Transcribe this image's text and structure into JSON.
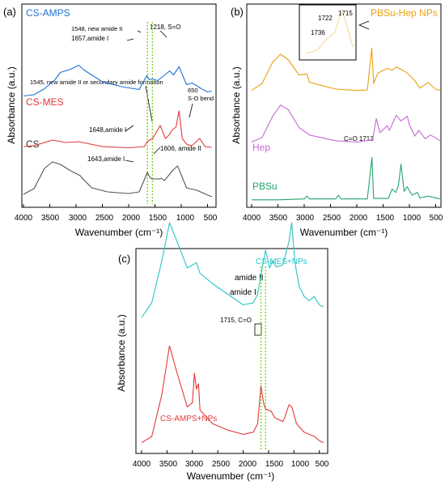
{
  "figure": {
    "panels": [
      {
        "panel_label": "(a)",
        "xlabel": "Wavenumber (cm⁻¹)",
        "ylabel": "Absorbance (a.u.)",
        "xticks": [
          "4000",
          "3500",
          "3000",
          "2500",
          "2000",
          "1500",
          "1000",
          "500"
        ],
        "series_labels": [
          "CS-AMPS",
          "CS-MES",
          "CS"
        ],
        "annotations": [
          "1548, new amide II",
          "1657,amide I",
          "1218, S=O",
          "1545, new amide II or secondary amide formation",
          "650",
          "S-O bend",
          "1648,amide I",
          "1643,amide I",
          "1606, amide II"
        ]
      },
      {
        "panel_label": "(b)",
        "xlabel": "Wavenumber (cm⁻¹)",
        "ylabel": "Absorbance (a.u.)",
        "xticks": [
          "4000",
          "3500",
          "3000",
          "2500",
          "2000",
          "1500",
          "1000",
          "500"
        ],
        "series_labels": [
          "PBSu-Hep NPs",
          "Hep",
          "PBSu"
        ],
        "annotations": [
          "C=O 1713"
        ],
        "inset_labels": [
          "1715",
          "1722",
          "1736"
        ]
      },
      {
        "panel_label": "(c)",
        "xlabel": "Wavenumber (cm⁻¹)",
        "ylabel": "Absorbance (a.u.)",
        "xticks": [
          "4000",
          "3500",
          "3000",
          "2500",
          "2000",
          "1500",
          "1000",
          "500"
        ],
        "series_labels": [
          "CS-MES+NPs",
          "CS-AMPS+NPs"
        ],
        "annotations": [
          "amide II",
          "amide I",
          "1715, C=O"
        ]
      }
    ]
  },
  "chart_data": [
    {
      "type": "line",
      "panel": "(a)",
      "xlabel": "Wavenumber (cm⁻¹)",
      "ylabel": "Absorbance (a.u.)",
      "xlim": [
        4000,
        400
      ],
      "reference_lines_x": [
        1643,
        1548
      ],
      "series": [
        {
          "name": "CS-AMPS",
          "color": "#2171d4",
          "offset": 2.35,
          "points": [
            [
              4000,
              0.2
            ],
            [
              3800,
              0.23
            ],
            [
              3600,
              0.38
            ],
            [
              3400,
              0.6
            ],
            [
              3300,
              0.78
            ],
            [
              3100,
              0.86
            ],
            [
              2950,
              0.96
            ],
            [
              2850,
              0.84
            ],
            [
              2500,
              0.55
            ],
            [
              2100,
              0.42
            ],
            [
              1800,
              0.36
            ],
            [
              1657,
              0.7
            ],
            [
              1600,
              0.6
            ],
            [
              1548,
              0.62
            ],
            [
              1450,
              0.58
            ],
            [
              1350,
              0.68
            ],
            [
              1218,
              0.82
            ],
            [
              1150,
              0.72
            ],
            [
              1040,
              0.92
            ],
            [
              900,
              0.48
            ],
            [
              800,
              0.52
            ],
            [
              700,
              0.45
            ],
            [
              620,
              0.38
            ],
            [
              500,
              0.3
            ],
            [
              420,
              0.32
            ]
          ]
        },
        {
          "name": "CS-MES",
          "color": "#e2393a",
          "offset": 1.2,
          "points": [
            [
              4000,
              0.1
            ],
            [
              3800,
              0.12
            ],
            [
              3450,
              0.26
            ],
            [
              3200,
              0.2
            ],
            [
              2950,
              0.22
            ],
            [
              2500,
              0.1
            ],
            [
              2000,
              0.07
            ],
            [
              1700,
              0.1
            ],
            [
              1648,
              0.22
            ],
            [
              1545,
              0.3
            ],
            [
              1480,
              0.44
            ],
            [
              1400,
              0.62
            ],
            [
              1300,
              0.3
            ],
            [
              1220,
              0.4
            ],
            [
              1180,
              0.5
            ],
            [
              1100,
              0.58
            ],
            [
              1042,
              0.98
            ],
            [
              980,
              0.3
            ],
            [
              900,
              0.16
            ],
            [
              800,
              0.12
            ],
            [
              650,
              0.3
            ],
            [
              550,
              0.1
            ],
            [
              420,
              0.08
            ]
          ]
        },
        {
          "name": "CS",
          "color": "#555555",
          "offset": 0.0,
          "points": [
            [
              4000,
              0.12
            ],
            [
              3800,
              0.26
            ],
            [
              3600,
              0.76
            ],
            [
              3450,
              0.92
            ],
            [
              3300,
              0.86
            ],
            [
              3100,
              0.7
            ],
            [
              2920,
              0.58
            ],
            [
              2870,
              0.5
            ],
            [
              2700,
              0.28
            ],
            [
              2400,
              0.18
            ],
            [
              2000,
              0.14
            ],
            [
              1800,
              0.18
            ],
            [
              1643,
              0.66
            ],
            [
              1600,
              0.55
            ],
            [
              1560,
              0.5
            ],
            [
              1420,
              0.5
            ],
            [
              1380,
              0.52
            ],
            [
              1320,
              0.46
            ],
            [
              1155,
              0.72
            ],
            [
              1070,
              0.82
            ],
            [
              1030,
              0.7
            ],
            [
              900,
              0.28
            ],
            [
              700,
              0.22
            ],
            [
              600,
              0.16
            ],
            [
              420,
              0.06
            ]
          ]
        }
      ]
    },
    {
      "type": "line",
      "panel": "(b)",
      "xlabel": "Wavenumber (cm⁻¹)",
      "ylabel": "Absorbance (a.u.)",
      "xlim": [
        4000,
        400
      ],
      "series": [
        {
          "name": "PBSu-Hep NPs",
          "color": "#e8a010",
          "offset": 2.3,
          "points": [
            [
              4000,
              0.05
            ],
            [
              3800,
              0.2
            ],
            [
              3600,
              0.65
            ],
            [
              3450,
              0.82
            ],
            [
              3300,
              0.7
            ],
            [
              3100,
              0.38
            ],
            [
              2950,
              0.4
            ],
            [
              2900,
              0.22
            ],
            [
              2400,
              0.08
            ],
            [
              2000,
              0.05
            ],
            [
              1800,
              0.06
            ],
            [
              1715,
              0.95
            ],
            [
              1680,
              0.2
            ],
            [
              1600,
              0.42
            ],
            [
              1420,
              0.52
            ],
            [
              1330,
              0.48
            ],
            [
              1250,
              0.55
            ],
            [
              1160,
              0.5
            ],
            [
              1040,
              0.42
            ],
            [
              900,
              0.26
            ],
            [
              800,
              0.1
            ],
            [
              650,
              0.22
            ],
            [
              500,
              0.08
            ],
            [
              420,
              0.05
            ]
          ]
        },
        {
          "name": "Hep",
          "color": "#c768d6",
          "offset": 1.2,
          "points": [
            [
              4000,
              0.05
            ],
            [
              3800,
              0.15
            ],
            [
              3600,
              0.6
            ],
            [
              3450,
              0.84
            ],
            [
              3300,
              0.74
            ],
            [
              3100,
              0.36
            ],
            [
              2900,
              0.2
            ],
            [
              2400,
              0.08
            ],
            [
              2000,
              0.05
            ],
            [
              1700,
              0.1
            ],
            [
              1630,
              0.55
            ],
            [
              1560,
              0.25
            ],
            [
              1420,
              0.4
            ],
            [
              1380,
              0.3
            ],
            [
              1250,
              0.62
            ],
            [
              1160,
              0.5
            ],
            [
              1040,
              0.6
            ],
            [
              1000,
              0.42
            ],
            [
              900,
              0.18
            ],
            [
              820,
              0.3
            ],
            [
              700,
              0.12
            ],
            [
              600,
              0.2
            ],
            [
              500,
              0.14
            ],
            [
              420,
              0.08
            ]
          ]
        },
        {
          "name": "PBSu",
          "color": "#22a56a",
          "offset": 0.0,
          "points": [
            [
              4000,
              0.02
            ],
            [
              3500,
              0.02
            ],
            [
              3000,
              0.04
            ],
            [
              2950,
              0.1
            ],
            [
              2900,
              0.04
            ],
            [
              2400,
              0.04
            ],
            [
              2350,
              0.12
            ],
            [
              2300,
              0.04
            ],
            [
              2000,
              0.04
            ],
            [
              1800,
              0.04
            ],
            [
              1713,
              0.92
            ],
            [
              1680,
              0.05
            ],
            [
              1400,
              0.05
            ],
            [
              1330,
              0.25
            ],
            [
              1260,
              0.18
            ],
            [
              1210,
              0.32
            ],
            [
              1160,
              0.78
            ],
            [
              1100,
              0.2
            ],
            [
              1045,
              0.3
            ],
            [
              950,
              0.12
            ],
            [
              850,
              0.18
            ],
            [
              800,
              0.06
            ],
            [
              650,
              0.1
            ],
            [
              420,
              0.04
            ]
          ]
        }
      ]
    },
    {
      "type": "line",
      "panel": "(c)",
      "xlabel": "Wavenumber (cm⁻¹)",
      "ylabel": "Absorbance (a.u.)",
      "xlim": [
        4000,
        400
      ],
      "reference_lines_x": [
        1650,
        1560
      ],
      "series": [
        {
          "name": "CS-MES+NPs",
          "color": "#28c6c6",
          "offset": 1.15,
          "points": [
            [
              4000,
              0.08
            ],
            [
              3800,
              0.22
            ],
            [
              3600,
              0.62
            ],
            [
              3450,
              0.98
            ],
            [
              3300,
              0.8
            ],
            [
              3100,
              0.55
            ],
            [
              2920,
              0.6
            ],
            [
              2850,
              0.5
            ],
            [
              2600,
              0.4
            ],
            [
              2300,
              0.3
            ],
            [
              2000,
              0.2
            ],
            [
              1800,
              0.22
            ],
            [
              1715,
              0.3
            ],
            [
              1650,
              0.48
            ],
            [
              1560,
              0.72
            ],
            [
              1480,
              0.55
            ],
            [
              1420,
              0.62
            ],
            [
              1350,
              0.56
            ],
            [
              1220,
              0.58
            ],
            [
              1180,
              0.65
            ],
            [
              1100,
              0.8
            ],
            [
              1045,
              0.98
            ],
            [
              980,
              0.6
            ],
            [
              900,
              0.38
            ],
            [
              800,
              0.28
            ],
            [
              700,
              0.24
            ],
            [
              600,
              0.28
            ],
            [
              500,
              0.2
            ],
            [
              420,
              0.18
            ]
          ]
        },
        {
          "name": "CS-AMPS+NPs",
          "color": "#e2393a",
          "offset": 0.0,
          "points": [
            [
              4000,
              0.04
            ],
            [
              3800,
              0.1
            ],
            [
              3600,
              0.5
            ],
            [
              3450,
              0.96
            ],
            [
              3300,
              0.7
            ],
            [
              3100,
              0.38
            ],
            [
              3000,
              0.42
            ],
            [
              2960,
              0.7
            ],
            [
              2920,
              0.55
            ],
            [
              2880,
              0.6
            ],
            [
              2850,
              0.35
            ],
            [
              2600,
              0.22
            ],
            [
              2300,
              0.16
            ],
            [
              2000,
              0.12
            ],
            [
              1800,
              0.14
            ],
            [
              1715,
              0.22
            ],
            [
              1650,
              0.58
            ],
            [
              1600,
              0.42
            ],
            [
              1560,
              0.36
            ],
            [
              1450,
              0.34
            ],
            [
              1380,
              0.28
            ],
            [
              1220,
              0.24
            ],
            [
              1180,
              0.28
            ],
            [
              1100,
              0.4
            ],
            [
              1040,
              0.38
            ],
            [
              950,
              0.22
            ],
            [
              800,
              0.14
            ],
            [
              700,
              0.12
            ],
            [
              600,
              0.1
            ],
            [
              500,
              0.06
            ],
            [
              420,
              0.04
            ]
          ]
        }
      ]
    }
  ]
}
